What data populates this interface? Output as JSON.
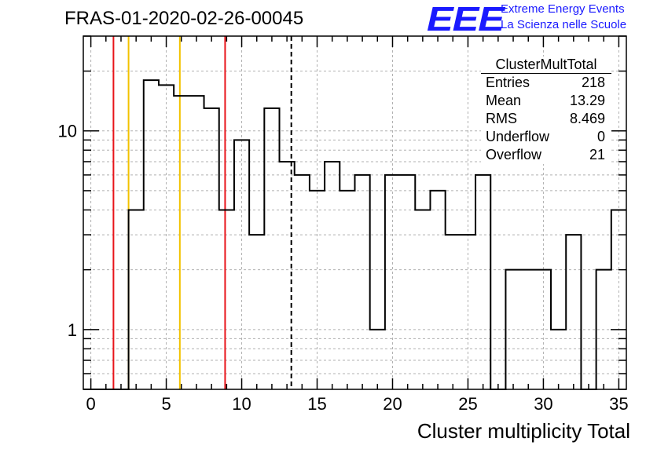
{
  "header": {
    "run_title": "FRAS-01-2020-02-26-00045",
    "logo_mark": "EEE",
    "logo_line1": "Extreme Energy Events",
    "logo_line2": "La Scienza nelle Scuole"
  },
  "stats_box": {
    "title": "ClusterMultTotal",
    "rows": [
      {
        "label": "Entries",
        "value": "218"
      },
      {
        "label": "Mean",
        "value": "13.29"
      },
      {
        "label": "RMS",
        "value": "8.469"
      },
      {
        "label": "Underflow",
        "value": "0"
      },
      {
        "label": "Overflow",
        "value": "21"
      }
    ]
  },
  "colors": {
    "histogram": "#000000",
    "red_line": "#e8141a",
    "yellow_line": "#f2c200",
    "grid": "#b0b0b0",
    "logo": "#1a1aff"
  },
  "chart_data": {
    "type": "histogram",
    "xlabel": "Cluster multiplicity Total",
    "ylabel": "",
    "y_scale": "log",
    "xlim": [
      -0.5,
      35.5
    ],
    "ylim": [
      0.5,
      30
    ],
    "grid": true,
    "x_ticks": [
      0,
      5,
      10,
      15,
      20,
      25,
      30,
      35
    ],
    "y_ticks": [
      1,
      10
    ],
    "bin_width": 1,
    "bins": [
      {
        "x": 0,
        "count": 0
      },
      {
        "x": 1,
        "count": 0
      },
      {
        "x": 2,
        "count": 0
      },
      {
        "x": 3,
        "count": 4
      },
      {
        "x": 4,
        "count": 18
      },
      {
        "x": 5,
        "count": 17
      },
      {
        "x": 6,
        "count": 15
      },
      {
        "x": 7,
        "count": 15
      },
      {
        "x": 8,
        "count": 13
      },
      {
        "x": 9,
        "count": 4
      },
      {
        "x": 10,
        "count": 9
      },
      {
        "x": 11,
        "count": 3
      },
      {
        "x": 12,
        "count": 13
      },
      {
        "x": 13,
        "count": 7
      },
      {
        "x": 14,
        "count": 6
      },
      {
        "x": 15,
        "count": 5
      },
      {
        "x": 16,
        "count": 7
      },
      {
        "x": 17,
        "count": 5
      },
      {
        "x": 18,
        "count": 6
      },
      {
        "x": 19,
        "count": 1
      },
      {
        "x": 20,
        "count": 6
      },
      {
        "x": 21,
        "count": 6
      },
      {
        "x": 22,
        "count": 4
      },
      {
        "x": 23,
        "count": 5
      },
      {
        "x": 24,
        "count": 3
      },
      {
        "x": 25,
        "count": 3
      },
      {
        "x": 26,
        "count": 6
      },
      {
        "x": 27,
        "count": 0
      },
      {
        "x": 28,
        "count": 2
      },
      {
        "x": 29,
        "count": 2
      },
      {
        "x": 30,
        "count": 2
      },
      {
        "x": 31,
        "count": 1
      },
      {
        "x": 32,
        "count": 3
      },
      {
        "x": 33,
        "count": 0
      },
      {
        "x": 34,
        "count": 2
      },
      {
        "x": 35,
        "count": 4
      }
    ],
    "vertical_lines": [
      {
        "x": 1.5,
        "color": "red",
        "style": "solid"
      },
      {
        "x": 2.5,
        "color": "yellow",
        "style": "solid"
      },
      {
        "x": 5.9,
        "color": "yellow",
        "style": "solid"
      },
      {
        "x": 8.9,
        "color": "red",
        "style": "solid"
      },
      {
        "x": 13.29,
        "color": "black",
        "style": "dashed"
      }
    ]
  }
}
